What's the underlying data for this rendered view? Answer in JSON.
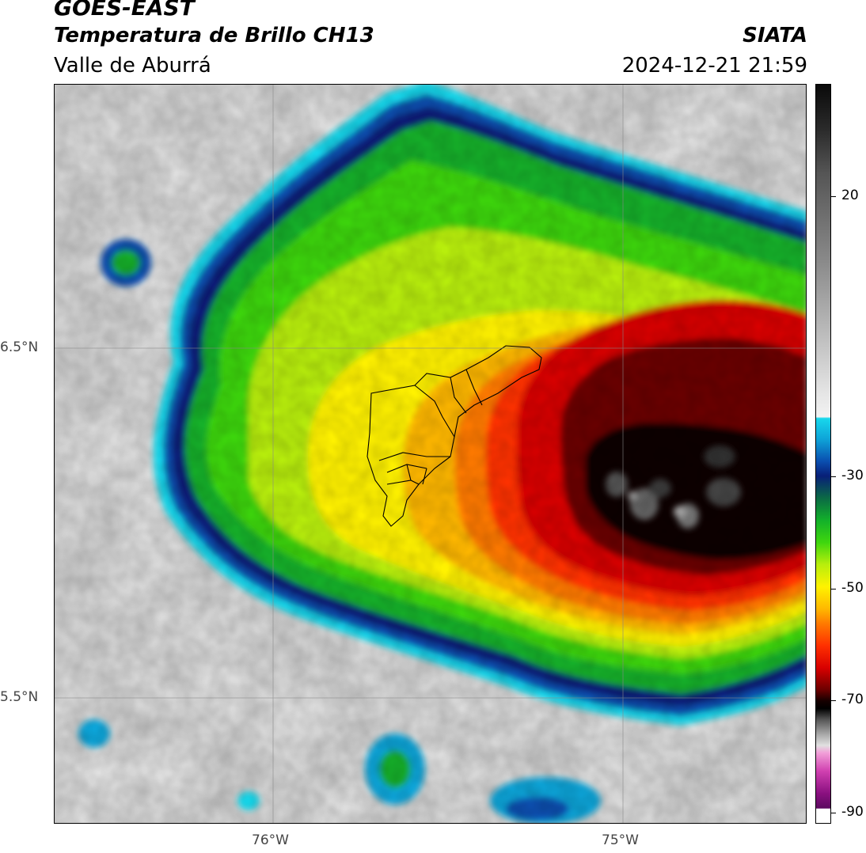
{
  "header": {
    "satellite": "GOES-EAST",
    "product": "Temperatura de Brillo CH13",
    "agency": "SIATA",
    "region": "Valle de Aburrá",
    "datetime": "2024-12-21 21:59"
  },
  "map": {
    "lat_labels": [
      "6.5°N",
      "5.5°N"
    ],
    "lon_labels": [
      "76°W",
      "75°W"
    ],
    "lat_values": [
      6.5,
      5.5
    ],
    "lon_values": [
      -76,
      -75
    ],
    "gridlines": true
  },
  "colorbar": {
    "tick_labels": [
      "20",
      "-30",
      "-50",
      "-70",
      "-90"
    ],
    "tick_values": [
      20,
      -30,
      -50,
      -70,
      -90
    ],
    "range": [
      -92,
      40
    ],
    "colors": {
      "warm": "#808080",
      "cyan": "#18d8ec",
      "blue": "#081f78",
      "green": "#12b02a",
      "yellow": "#fff200",
      "orange": "#ff7a00",
      "red": "#d80000",
      "black": "#000000",
      "magenta": "#8a1080"
    }
  }
}
